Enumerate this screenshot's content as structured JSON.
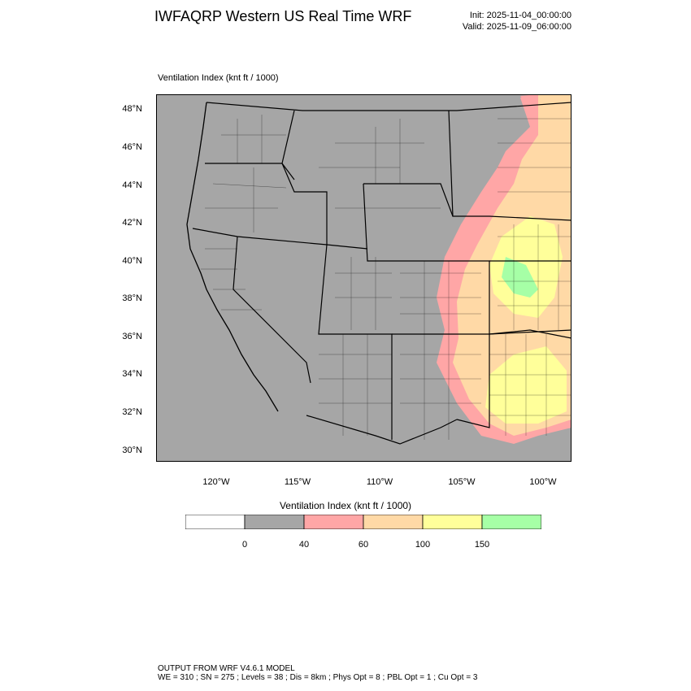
{
  "header": {
    "title": "IWFAQRP Western US Real Time WRF",
    "init": "Init: 2025-11-04_00:00:00",
    "valid": "Valid: 2025-11-09_06:00:00"
  },
  "map": {
    "subtitle": "Ventilation Index   (knt ft / 1000)",
    "lat_labels": [
      "48°N",
      "46°N",
      "44°N",
      "42°N",
      "40°N",
      "38°N",
      "36°N",
      "34°N",
      "32°N",
      "30°N"
    ],
    "lon_labels": [
      "120°W",
      "115°W",
      "110°W",
      "105°W",
      "100°W"
    ],
    "background_color": "#a6a6a6",
    "boundary_color": "#000000"
  },
  "colorbar": {
    "title": "Ventilation Index   (knt ft / 1000)",
    "labels": [
      "0",
      "40",
      "60",
      "100",
      "150"
    ],
    "colors": [
      "#ffffff",
      "#a6a6a6",
      "#ffa6a6",
      "#ffd9a6",
      "#ffff9a",
      "#a6ffa6"
    ]
  },
  "footer": {
    "line1": "OUTPUT FROM WRF V4.6.1 MODEL",
    "line2": "WE = 310 ; SN = 275 ; Levels = 38 ; Dis = 8km ; Phys Opt = 8 ; PBL Opt = 1 ; Cu Opt = 3"
  }
}
